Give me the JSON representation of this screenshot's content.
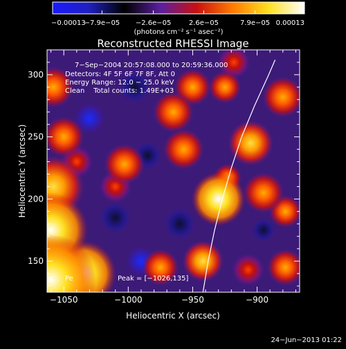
{
  "chart_data": {
    "type": "heatmap",
    "title": "Reconstructed RHESSI Image",
    "xlabel": "Heliocentric X (arcsec)",
    "ylabel": "Heliocentric Y (arcsec)",
    "xlim": [
      -1063,
      -867
    ],
    "ylim": [
      125,
      320
    ],
    "x_ticks": [
      {
        "value": -1050,
        "label": "−1050"
      },
      {
        "value": -1000,
        "label": "−1000"
      },
      {
        "value": -950,
        "label": "−950"
      },
      {
        "value": -900,
        "label": "−900"
      }
    ],
    "y_ticks": [
      {
        "value": 150,
        "label": "150"
      },
      {
        "value": 200,
        "label": "200"
      },
      {
        "value": 250,
        "label": "250"
      },
      {
        "value": 300,
        "label": "300"
      }
    ],
    "colorbar": {
      "min": -0.00013,
      "max": 0.00013,
      "tick_labels": [
        "−0.00013",
        "−7.9e−05",
        "−2.6e−05",
        "2.6e−05",
        "7.9e−05",
        "0.00013"
      ],
      "tick_values": [
        -0.00013,
        -7.9e-05,
        -2.6e-05,
        2.6e-05,
        7.9e-05,
        0.00013
      ],
      "unit_label": "(photons cm⁻² s⁻¹ asec⁻²)",
      "colors": [
        "#1a1aff",
        "#2020c0",
        "#000000",
        "#5a1fa0",
        "#c81010",
        "#ff7a00",
        "#ffe020",
        "#ffffff"
      ]
    },
    "annotations": [
      "7−Sep−2004 20:57:08.000 to 20:59:36.000",
      "Detectors: 4F 5F 6F 7F 8F, Att 0",
      "Energy Range: 12.0 − 25.0 keV",
      "Clean    Total counts: 1.49E+03"
    ],
    "peak_label": "Peak = [−1026,135]",
    "peak_prefix": "Pe",
    "limb_curve": [
      {
        "x": -942,
        "y": 125
      },
      {
        "x": -938,
        "y": 150
      },
      {
        "x": -933,
        "y": 175
      },
      {
        "x": -927,
        "y": 200
      },
      {
        "x": -920,
        "y": 225
      },
      {
        "x": -912,
        "y": 250
      },
      {
        "x": -902,
        "y": 275
      },
      {
        "x": -891,
        "y": 300
      },
      {
        "x": -886,
        "y": 312
      }
    ],
    "blobs": [
      {
        "x": -1060,
        "y": 135,
        "r": 22,
        "v": 1.0
      },
      {
        "x": -1035,
        "y": 140,
        "r": 16,
        "v": 0.95
      },
      {
        "x": -1060,
        "y": 175,
        "r": 18,
        "v": 0.95
      },
      {
        "x": -1058,
        "y": 210,
        "r": 15,
        "v": 0.85
      },
      {
        "x": -1050,
        "y": 250,
        "r": 10,
        "v": 0.55
      },
      {
        "x": -1058,
        "y": 290,
        "r": 10,
        "v": 0.6
      },
      {
        "x": -1003,
        "y": 228,
        "r": 10,
        "v": 0.6
      },
      {
        "x": -1010,
        "y": 210,
        "r": 8,
        "v": 0.45
      },
      {
        "x": -975,
        "y": 145,
        "r": 9,
        "v": 0.5
      },
      {
        "x": -965,
        "y": 270,
        "r": 10,
        "v": 0.55
      },
      {
        "x": -957,
        "y": 240,
        "r": 10,
        "v": 0.5
      },
      {
        "x": -950,
        "y": 290,
        "r": 9,
        "v": 0.5
      },
      {
        "x": -942,
        "y": 150,
        "r": 10,
        "v": 0.75
      },
      {
        "x": -930,
        "y": 200,
        "r": 13,
        "v": 0.95
      },
      {
        "x": -923,
        "y": 217,
        "r": 7,
        "v": 0.55
      },
      {
        "x": -905,
        "y": 245,
        "r": 11,
        "v": 0.75
      },
      {
        "x": -895,
        "y": 205,
        "r": 10,
        "v": 0.6
      },
      {
        "x": -880,
        "y": 282,
        "r": 10,
        "v": 0.6
      },
      {
        "x": -925,
        "y": 290,
        "r": 8,
        "v": 0.5
      },
      {
        "x": -918,
        "y": 310,
        "r": 8,
        "v": 0.45
      },
      {
        "x": -907,
        "y": 143,
        "r": 8,
        "v": 0.45
      },
      {
        "x": -878,
        "y": 190,
        "r": 8,
        "v": 0.5
      },
      {
        "x": -878,
        "y": 145,
        "r": 9,
        "v": 0.55
      },
      {
        "x": -1040,
        "y": 230,
        "r": 8,
        "v": 0.45
      },
      {
        "x": -990,
        "y": 150,
        "r": 8,
        "v": -0.5
      },
      {
        "x": -1010,
        "y": 185,
        "r": 8,
        "v": -0.35
      },
      {
        "x": -1030,
        "y": 265,
        "r": 8,
        "v": -0.45
      },
      {
        "x": -985,
        "y": 235,
        "r": 7,
        "v": -0.4
      },
      {
        "x": -960,
        "y": 180,
        "r": 8,
        "v": -0.4
      },
      {
        "x": -995,
        "y": 290,
        "r": 8,
        "v": -0.35
      },
      {
        "x": -895,
        "y": 175,
        "r": 6,
        "v": -0.3
      }
    ]
  },
  "footer": {
    "timestamp": "24−Jun−2013 01:22"
  }
}
